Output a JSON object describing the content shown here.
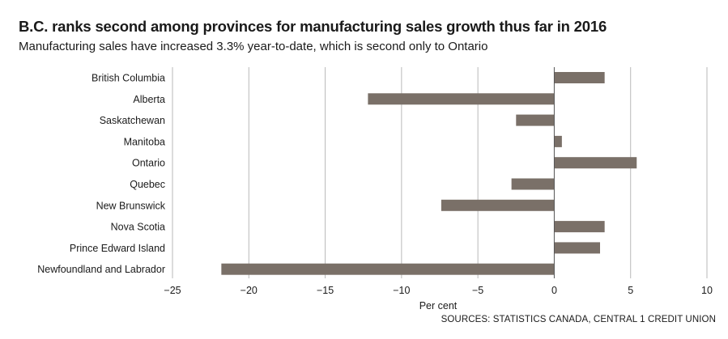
{
  "header": {
    "title": "B.C. ranks second among provinces for manufacturing sales growth thus far in 2016",
    "subtitle": "Manufacturing sales have increased 3.3% year-to-date, which is second only to Ontario"
  },
  "chart_data": {
    "type": "bar",
    "orientation": "horizontal",
    "categories": [
      "British Columbia",
      "Alberta",
      "Saskatchewan",
      "Manitoba",
      "Ontario",
      "Quebec",
      "New Brunswick",
      "Nova Scotia",
      "Prince Edward Island",
      "Newfoundland and Labrador"
    ],
    "values": [
      3.3,
      -12.2,
      -2.5,
      0.5,
      5.4,
      -2.8,
      -7.4,
      3.3,
      3.0,
      -21.8
    ],
    "xlabel": "Per cent",
    "ylabel": "",
    "xlim": [
      -25,
      10
    ],
    "xticks": [
      -25,
      -20,
      -15,
      -10,
      -5,
      0,
      5,
      10
    ],
    "xtick_labels": [
      "−25",
      "−20",
      "−15",
      "−10",
      "−5",
      "0",
      "5",
      "10"
    ],
    "grid": "vertical",
    "bar_color": "#7a7068",
    "grid_color": "#b9b9b9",
    "zero_line_color": "#555555"
  },
  "footer": {
    "source": "SOURCES:  STATISTICS CANADA, CENTRAL 1 CREDIT UNION"
  }
}
